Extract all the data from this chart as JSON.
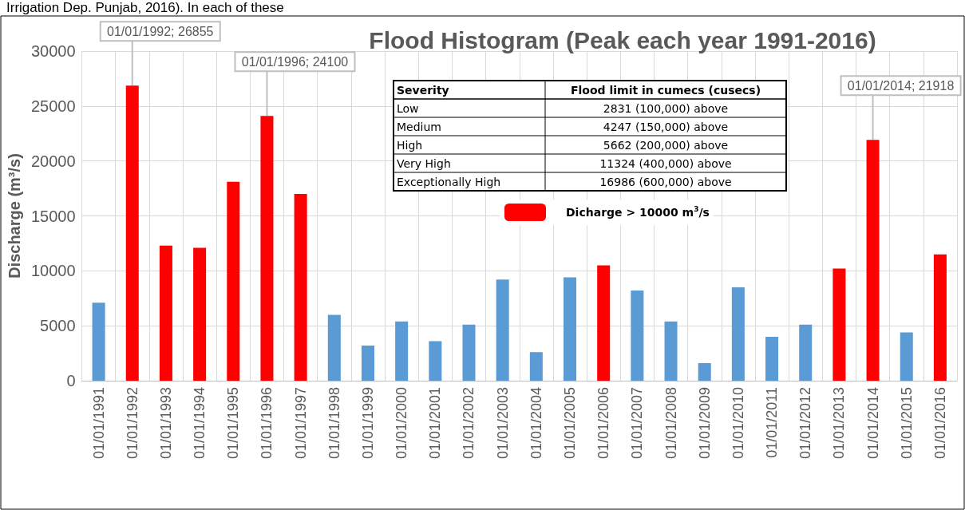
{
  "chart_data": {
    "type": "bar",
    "title": "Flood Histogram (Peak each year 1991-2016)",
    "ylabel": "Discharge (m³/s)",
    "categories": [
      "01/01/1991",
      "01/01/1992",
      "01/01/1993",
      "01/01/1994",
      "01/01/1995",
      "01/01/1996",
      "01/01/1997",
      "01/01/1998",
      "01/01/1999",
      "01/01/2000",
      "01/01/2001",
      "01/01/2002",
      "01/01/2003",
      "01/01/2004",
      "01/01/2005",
      "01/01/2006",
      "01/01/2007",
      "01/01/2008",
      "01/01/2009",
      "01/01/2010",
      "01/01/2011",
      "01/01/2012",
      "01/01/2013",
      "01/01/2014",
      "01/01/2015",
      "01/01/2016"
    ],
    "series": [
      {
        "name": "Dicharge > 10000 m$^{3}$/s",
        "color": "#ff0000",
        "values": [
          null,
          26855,
          12300,
          12100,
          18100,
          24100,
          17000,
          null,
          null,
          null,
          null,
          null,
          null,
          null,
          null,
          10500,
          null,
          null,
          null,
          null,
          null,
          null,
          10200,
          21918,
          null,
          11500
        ]
      },
      {
        "color": "#5b9bd5",
        "values": [
          7100,
          null,
          null,
          null,
          null,
          null,
          null,
          6000,
          3200,
          5400,
          3600,
          5100,
          9200,
          2600,
          9400,
          null,
          8200,
          5400,
          1600,
          8500,
          4000,
          5100,
          null,
          null,
          4400,
          null
        ]
      }
    ],
    "ylim": [
      0,
      30000
    ],
    "yticks": [
      0,
      5000,
      10000,
      15000,
      20000,
      25000,
      30000
    ],
    "grid": true,
    "legend": "top",
    "annotations": [
      "Irrigation Dep. Punjab, 2016). In each of these",
      {
        "text": "01/01/1992; 26855",
        "x": "01/01/1992",
        "y": 26855
      },
      {
        "text": "01/01/1996; 24100",
        "x": "01/01/1996",
        "y": 24100
      },
      {
        "text": "01/01/2014; 21918",
        "x": "01/01/2014",
        "y": 21918
      },
      "Severity",
      "Flood limit in cumecs (cusecs)",
      "Low",
      "2831 (100,000) above",
      "Medium",
      "4247 (150,000) above",
      "High",
      "5662 (200,000) above",
      "Very High",
      "11324 (400,000) above",
      "Exceptionally High",
      "16986 (600,000) above"
    ]
  }
}
